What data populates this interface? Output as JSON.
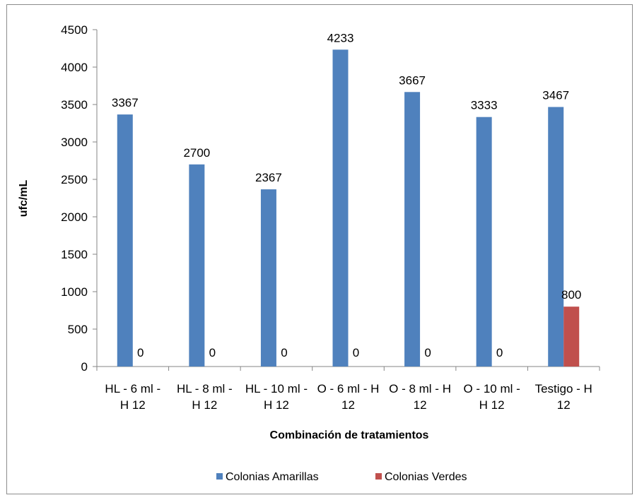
{
  "chart_data": {
    "type": "bar",
    "categories": [
      [
        "HL - 6 ml -",
        "H 12"
      ],
      [
        "HL - 8 ml -",
        "H 12"
      ],
      [
        "HL - 10 ml -",
        "H 12"
      ],
      [
        "O - 6 ml - H",
        "12"
      ],
      [
        "O - 8 ml - H",
        "12"
      ],
      [
        "O - 10 ml -",
        "H 12"
      ],
      [
        "Testigo - H",
        "12"
      ]
    ],
    "series": [
      {
        "name": "Colonias Amarillas",
        "color": "#4f81bd",
        "values": [
          3367,
          2700,
          2367,
          4233,
          3667,
          3333,
          3467
        ]
      },
      {
        "name": "Colonias Verdes",
        "color": "#c0504d",
        "values": [
          0,
          0,
          0,
          0,
          0,
          0,
          800
        ]
      }
    ],
    "xlabel": "Combinación de tratamientos",
    "ylabel": "ufc/mL",
    "ylim": [
      0,
      4500
    ],
    "yticks": [
      0,
      500,
      1000,
      1500,
      2000,
      2500,
      3000,
      3500,
      4000,
      4500
    ],
    "grid": false,
    "legend_position": "bottom"
  }
}
